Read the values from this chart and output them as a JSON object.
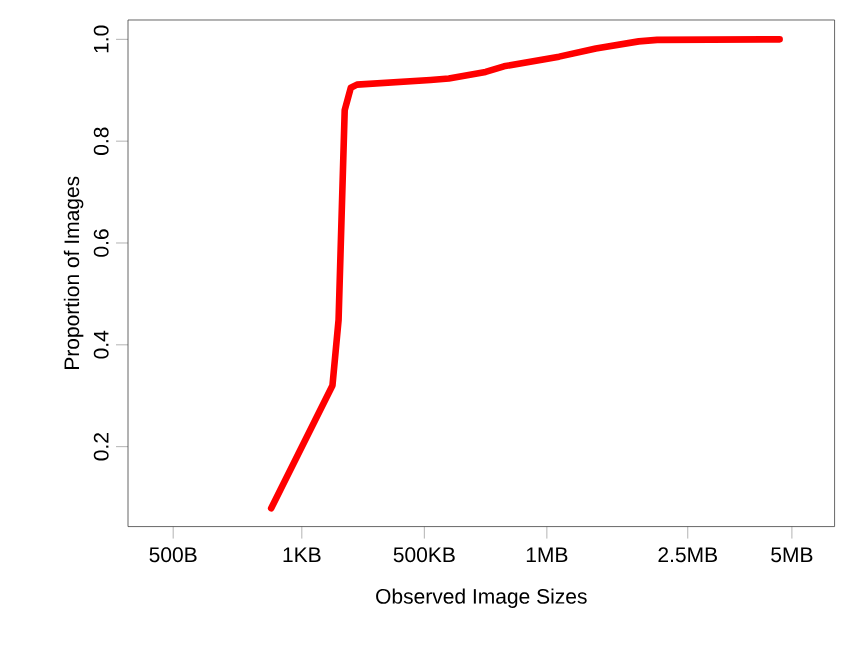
{
  "chart_data": {
    "type": "line",
    "xlabel": "Observed Image Sizes",
    "ylabel": "Proportion of Images",
    "categories": [
      "500B",
      null,
      null,
      null,
      null,
      null,
      null,
      null,
      null,
      null,
      null,
      null,
      null,
      null,
      null,
      null,
      null,
      null,
      null,
      null,
      null,
      "1KB",
      null,
      null,
      null,
      null,
      null,
      null,
      null,
      null,
      null,
      null,
      null,
      null,
      null,
      null,
      null,
      null,
      null,
      null,
      null,
      "500KB",
      null,
      null,
      null,
      null,
      null,
      null,
      null,
      null,
      null,
      null,
      null,
      null,
      null,
      null,
      null,
      null,
      null,
      null,
      null,
      "1MB",
      null,
      null,
      null,
      null,
      null,
      null,
      null,
      null,
      null,
      null,
      null,
      null,
      null,
      null,
      null,
      null,
      null,
      null,
      null,
      null,
      null,
      null,
      "2.5MB",
      null,
      null,
      null,
      null,
      null,
      null,
      null,
      null,
      null,
      null,
      null,
      null,
      null,
      null,
      null,
      null,
      "5MB"
    ],
    "series": [
      {
        "color": "#ff0000",
        "values": [
          null,
          null,
          null,
          null,
          null,
          null,
          null,
          null,
          null,
          null,
          null,
          null,
          null,
          null,
          null,
          null,
          0.079,
          null,
          null,
          null,
          null,
          null,
          null,
          null,
          null,
          null,
          0.32,
          0.449,
          0.861,
          0.905,
          0.911,
          null,
          null,
          null,
          null,
          null,
          null,
          null,
          null,
          null,
          null,
          null,
          0.92,
          null,
          null,
          0.923,
          null,
          null,
          null,
          null,
          null,
          0.936,
          null,
          null,
          0.947,
          null,
          null,
          null,
          null,
          null,
          null,
          null,
          null,
          0.966,
          null,
          null,
          null,
          null,
          null,
          0.982,
          null,
          null,
          null,
          null,
          null,
          null,
          0.996,
          null,
          null,
          0.999,
          null,
          null,
          null,
          null,
          null,
          null,
          null,
          null,
          null,
          null,
          null,
          null,
          null,
          null,
          null,
          null,
          null,
          null,
          null,
          1.0,
          null,
          null
        ]
      }
    ],
    "ylim": [
      0.043,
      1.038
    ],
    "yticks": [
      0.2,
      0.4,
      0.6,
      0.8,
      {
        "value": 1,
        "label": "1.0"
      }
    ],
    "grid": false,
    "marker": "none",
    "line_style": "solid"
  }
}
